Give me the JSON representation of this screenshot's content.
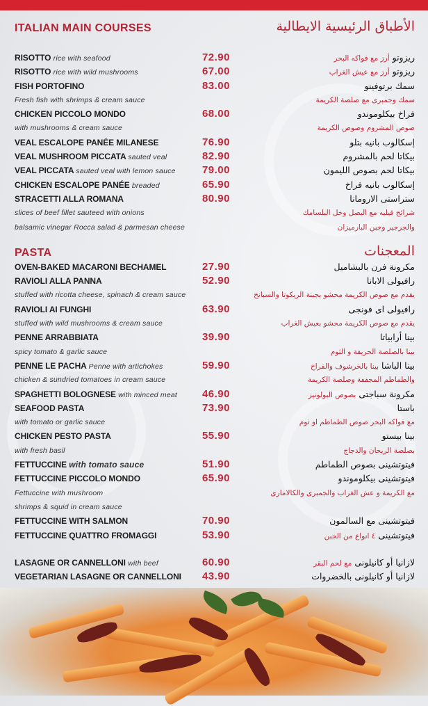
{
  "colors": {
    "accent": "#c0283a",
    "topbar": "#d52430",
    "background": "#e7e9ec"
  },
  "sections": [
    {
      "title_en": "ITALIAN MAIN COURSES",
      "title_ar": "الأطباق الرئيسية الايطالية",
      "rows": [
        {
          "en": "RISOTTO",
          "en_note": "rice with seafood",
          "price": "72.90",
          "ar": "ريزوتو",
          "ar_note": "أرز مع فواكه البحر"
        },
        {
          "en": "RISOTTO",
          "en_note": "rice with wild mushrooms",
          "price": "67.00",
          "ar": "ريزوتو",
          "ar_note": "أرز مع عيش الغراب"
        },
        {
          "en": "FISH PORTOFINO",
          "price": "83.00",
          "ar": "سمك برتوفينو"
        },
        {
          "en_desc": "Fresh fish with shrimps & cream sauce",
          "ar_desc": "سمك وجمبرى مع صلصة الكريمة"
        },
        {
          "en": "CHICKEN PICCOLO MONDO",
          "price": "68.00",
          "ar": "فراخ بيكلوموندو"
        },
        {
          "en_desc": "with mushrooms & cream sauce",
          "ar_desc": "صوص المشروم وصوص الكريمة"
        },
        {
          "en": "VEAL ESCALOPE PANÉE MILANESE",
          "price": "76.90",
          "ar": "إسكالوب بانيه بتلو"
        },
        {
          "en": "VEAL MUSHROOM PICCATA",
          "en_note": "sauted veal",
          "price": "82.90",
          "ar": "بيكاتا لحم بالمشروم"
        },
        {
          "en": "VEAL PICCATA",
          "en_note": "sauted veal with lemon sauce",
          "price": "79.00",
          "ar": "بيكاتا لحم بصوص الليمون"
        },
        {
          "en": "CHICKEN ESCALOPE PANÉE",
          "en_note": "breaded",
          "price": "65.90",
          "ar": "إسكالوب بانيه فراخ"
        },
        {
          "en": "STRACETTI ALLA ROMANA",
          "price": "80.90",
          "ar": "ستراستى الارومانا"
        },
        {
          "en_desc": "slices of beef fillet sauteed with onions",
          "ar_desc": "شرائح فيليه مع البصل وخل البلسامك"
        },
        {
          "en_desc": "balsamic vinegar Rocca salad & parmesan cheese",
          "ar_desc": "والجرجير وجبن البارميزان"
        }
      ]
    },
    {
      "title_en": "PASTA",
      "title_ar": "المعجنات",
      "rows": [
        {
          "en": "OVEN-BAKED MACARONI BECHAMEL",
          "price": "27.90",
          "ar": "مكرونة فرن بالبشاميل"
        },
        {
          "en": "RAVIOLI ALLA PANNA",
          "price": "52.90",
          "ar": "رافيولى الابانا"
        },
        {
          "en_desc": "stuffed with ricotta cheese, spinach & cream sauce",
          "ar_desc": "يقدم مع صوص الكريمة محشو بجبنة الريكوتا والسبانخ"
        },
        {
          "en": "RAVIOLI AI FUNGHI",
          "price": "63.90",
          "ar": "رافيولى اى فونجى"
        },
        {
          "en_desc": "stuffed with wild mushrooms & cream sauce",
          "ar_desc": "يقدم مع صوص الكريمة محشو بعيش الغراب"
        },
        {
          "en": "PENNE ARRABBIATA",
          "price": "39.90",
          "ar": "بينا أرابياتا"
        },
        {
          "en_desc": "spicy tomato & garlic sauce",
          "ar_desc": "بينا بالصلصة الحريفة و الثوم"
        },
        {
          "en": "PENNE LE PACHA",
          "en_note": "Penne with artichokes",
          "price": "59.90",
          "ar": "بينا الباشا",
          "ar_note": "بينا بالخرشوف والفراخ"
        },
        {
          "en_desc": "chicken & sundried tomatoes in cream sauce",
          "ar_desc": "والطماطم المجففة وصلصة الكريمة"
        },
        {
          "en": "SPAGHETTI BOLOGNESE",
          "en_note": "with minced meat",
          "price": "46.90",
          "ar": "مكرونة سباجتى",
          "ar_note": "بصوص البولونيز"
        },
        {
          "en": "SEAFOOD PASTA",
          "price": "73.90",
          "ar": "باستا"
        },
        {
          "en_desc": "with tomato or garlic sauce",
          "ar_desc": "مع فواكه البحر  صوص الطماطم او ثوم"
        },
        {
          "en": "CHICKEN PESTO PASTA",
          "price": "55.90",
          "ar": "بينا بيستو"
        },
        {
          "en_desc": "with fresh basil",
          "ar_desc": "بصلصة الريحان والدجاج"
        },
        {
          "en": "FETTUCCINE",
          "en_note": "with tomato sauce",
          "big_note": true,
          "price": "51.90",
          "ar": "فيتوتشينى بصوص الطماطم"
        },
        {
          "en": "FETTUCCINE PICCOLO MONDO",
          "price": "65.90",
          "ar": "فيتوتشينى بيكلوموندو"
        },
        {
          "en_desc": "Fettuccine with mushroom",
          "ar_desc": "مع الكريمة و عش الغراب والجمبرى والكالامارى"
        },
        {
          "en_desc": " shrimps & squid in cream sauce"
        },
        {
          "en": "FETTUCCINE WITH SALMON",
          "price": "70.90",
          "ar": "فيتوتشينى مع السالمون"
        },
        {
          "en": "FETTUCCINE QUATTRO FROMAGGI",
          "price": "53.90",
          "ar": "فيتوتشينى",
          "ar_note": "٤ انواع من الجبن"
        }
      ]
    },
    {
      "rows": [
        {
          "en": "LASAGNE OR CANNELLONI",
          "en_note": "with beef",
          "price": "60.90",
          "ar": "لازانيا  أو كانيلونى",
          "ar_note": "مع لحم البقر"
        },
        {
          "en": "VEGETARIAN LASAGNE OR CANNELLONI",
          "price": "43.90",
          "ar": "لازانيا أو كانيلونى بالخضروات"
        }
      ]
    }
  ],
  "photo": {
    "subject": "penne pasta with sundried tomatoes and basil"
  }
}
